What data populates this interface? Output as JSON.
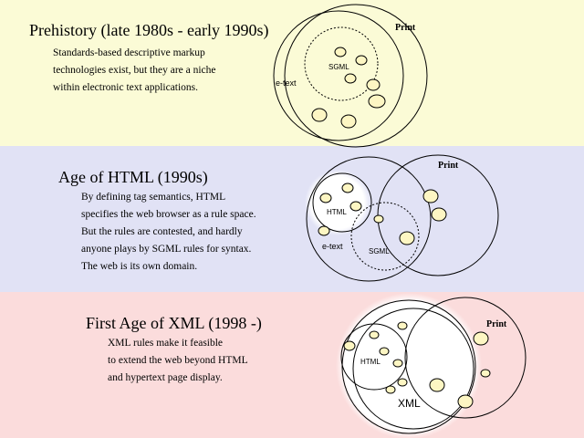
{
  "colors": {
    "band_prehistory": "#fbfbd6",
    "band_html": "#e1e2f5",
    "band_xml": "#fbdcdc",
    "element_fill": "#fdf6c3",
    "outline": "#000000"
  },
  "sections": [
    {
      "title": "Prehistory (late 1980s - early 1990s)",
      "lines": [
        "Standards-based descriptive markup",
        "technologies exist, but they are a niche",
        "within electronic text applications."
      ],
      "diagram": {
        "print_label": "Print",
        "etext_label": "e-text",
        "sgml_label": "SGML"
      }
    },
    {
      "title": "Age of HTML (1990s)",
      "lines": [
        "By defining tag semantics, HTML",
        "specifies the web browser as a rule space.",
        "But the rules are contested, and hardly",
        "anyone plays by SGML rules for syntax.",
        "The web is its own domain."
      ],
      "diagram": {
        "print_label": "Print",
        "etext_label": "e-text",
        "html_label": "HTML",
        "sgml_label": "SGML"
      }
    },
    {
      "title": "First Age of XML (1998 -)",
      "lines": [
        "XML rules make it feasible",
        "to extend the web beyond HTML",
        "and hypertext page display."
      ],
      "diagram": {
        "print_label": "Print",
        "html_label": "HTML",
        "xml_label": "XML"
      }
    }
  ]
}
